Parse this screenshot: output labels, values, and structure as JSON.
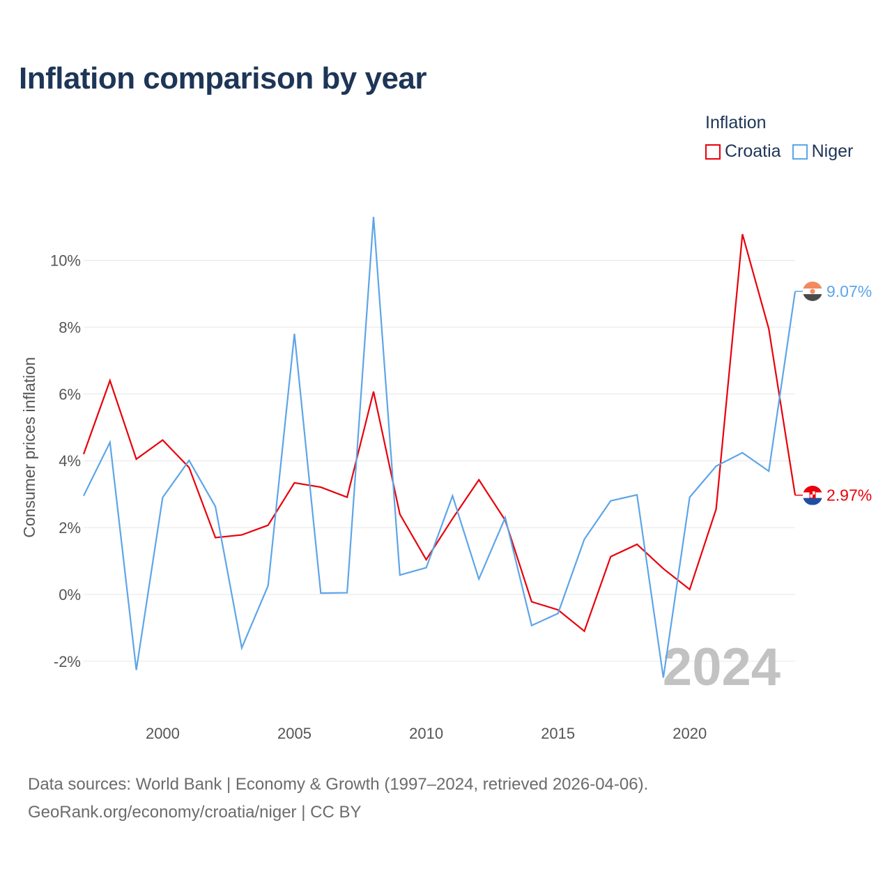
{
  "title": "Inflation comparison by year",
  "legend": {
    "title": "Inflation",
    "items": [
      {
        "label": "Croatia",
        "color": "#e8000b"
      },
      {
        "label": "Niger",
        "color": "#5da5e8"
      }
    ]
  },
  "footer": {
    "line1": "Data sources: World Bank | Economy & Growth (1997–2024, retrieved 2026-04-06).",
    "line2": "GeoRank.org/economy/croatia/niger | CC BY"
  },
  "chart_data": {
    "type": "line",
    "title": "Inflation comparison by year",
    "xlabel": "",
    "ylabel": "Consumer prices inflation",
    "year_watermark": "2024",
    "xlim": [
      1997,
      2024
    ],
    "ylim": [
      -2.6,
      11.5
    ],
    "x_ticks": [
      2000,
      2005,
      2010,
      2015,
      2020
    ],
    "y_ticks": [
      -2,
      0,
      2,
      4,
      6,
      8,
      10
    ],
    "y_tick_labels": [
      "-2%",
      "0%",
      "2%",
      "4%",
      "6%",
      "8%",
      "10%"
    ],
    "grid": true,
    "legend_position": "top-right",
    "x": [
      1997,
      1998,
      1999,
      2000,
      2001,
      2002,
      2003,
      2004,
      2005,
      2006,
      2007,
      2008,
      2009,
      2010,
      2011,
      2012,
      2013,
      2014,
      2015,
      2016,
      2017,
      2018,
      2019,
      2020,
      2021,
      2022,
      2023,
      2024
    ],
    "series": [
      {
        "name": "Croatia",
        "color": "#e8000b",
        "flag": "croatia-flag",
        "end_label": "2.97%",
        "values": [
          4.2,
          6.4,
          4.05,
          4.62,
          3.8,
          1.7,
          1.78,
          2.07,
          3.34,
          3.21,
          2.91,
          6.07,
          2.4,
          1.04,
          2.27,
          3.43,
          2.22,
          -0.22,
          -0.46,
          -1.1,
          1.13,
          1.5,
          0.77,
          0.15,
          2.55,
          10.78,
          7.95,
          2.97
        ]
      },
      {
        "name": "Niger",
        "color": "#5da5e8",
        "flag": "niger-flag",
        "end_label": "9.07%",
        "values": [
          2.95,
          4.55,
          -2.26,
          2.9,
          4.01,
          2.63,
          -1.6,
          0.26,
          7.8,
          0.04,
          0.05,
          11.3,
          0.58,
          0.8,
          2.95,
          0.46,
          2.3,
          -0.93,
          -0.57,
          1.65,
          2.8,
          2.98,
          -2.49,
          2.91,
          3.84,
          4.24,
          3.69,
          9.07
        ]
      }
    ]
  }
}
